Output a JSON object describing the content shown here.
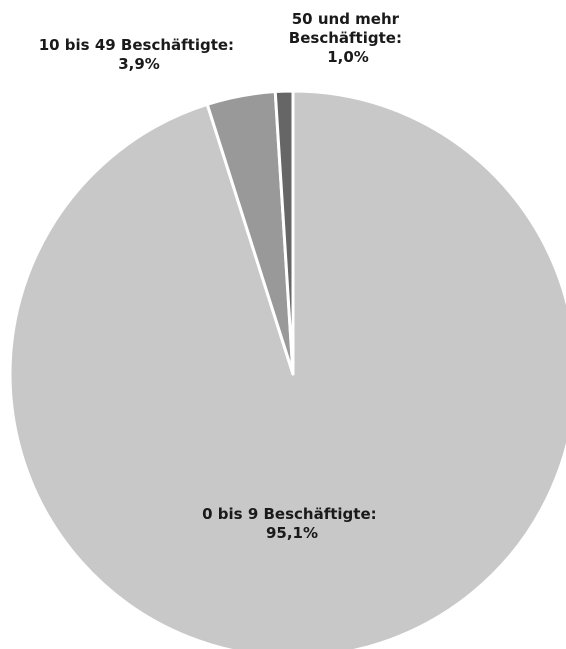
{
  "chart_data": {
    "type": "pie",
    "start_angle_deg": 0,
    "direction": "clockwise",
    "legend": "none",
    "slices": [
      {
        "label": "0 bis 9 Beschäftigte:",
        "value_label": "95,1%",
        "value": 95.1,
        "color": "#c8c8c8"
      },
      {
        "label": "10 bis 49 Beschäftigte:",
        "value_label": "3,9%",
        "value": 3.9,
        "color": "#999999"
      },
      {
        "label_lines": [
          "50 und mehr",
          "Beschäftigte:"
        ],
        "value_label": "1,0%",
        "value": 1.0,
        "color": "#666666"
      }
    ],
    "slice_border_color": "#ffffff"
  }
}
